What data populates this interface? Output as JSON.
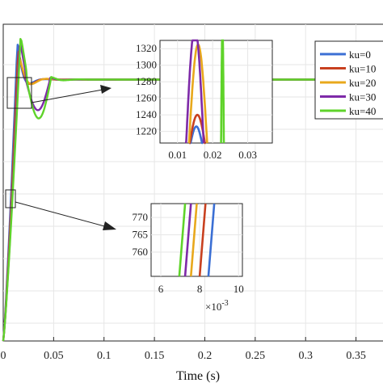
{
  "chart_data": {
    "type": "line",
    "xlabel": "Time (s)",
    "ylabel": "",
    "xlim": [
      0,
      0.38
    ],
    "x_ticks": [
      "0",
      "0.05",
      "0.1",
      "0.15",
      "0.2",
      "0.25",
      "0.3",
      "0.35"
    ],
    "grid": true,
    "legend_placement": "top-right",
    "series": [
      {
        "name": "ku=0",
        "color": "#3b6fd4"
      },
      {
        "name": "ku=10",
        "color": "#c8401f"
      },
      {
        "name": "ku=20",
        "color": "#e8a81c"
      },
      {
        "name": "ku=30",
        "color": "#7e2aa8"
      },
      {
        "name": "ku=40",
        "color": "#5fd32a"
      }
    ],
    "insets": [
      {
        "xlim": [
          0.005,
          0.037
        ],
        "ylim": [
          1206,
          1330
        ],
        "x_ticks": [
          "0.01",
          "0.02",
          "0.03"
        ],
        "y_ticks": [
          "1220",
          "1240",
          "1260",
          "1280",
          "1300",
          "1320"
        ]
      },
      {
        "xlim": [
          5.5,
          10.2
        ],
        "ylim": [
          753,
          774
        ],
        "x_ticks": [
          "6",
          "8",
          "10"
        ],
        "y_ticks": [
          "760",
          "765",
          "770"
        ],
        "x_scale_label": "×10",
        "x_scale_exponent": "-3"
      }
    ]
  }
}
